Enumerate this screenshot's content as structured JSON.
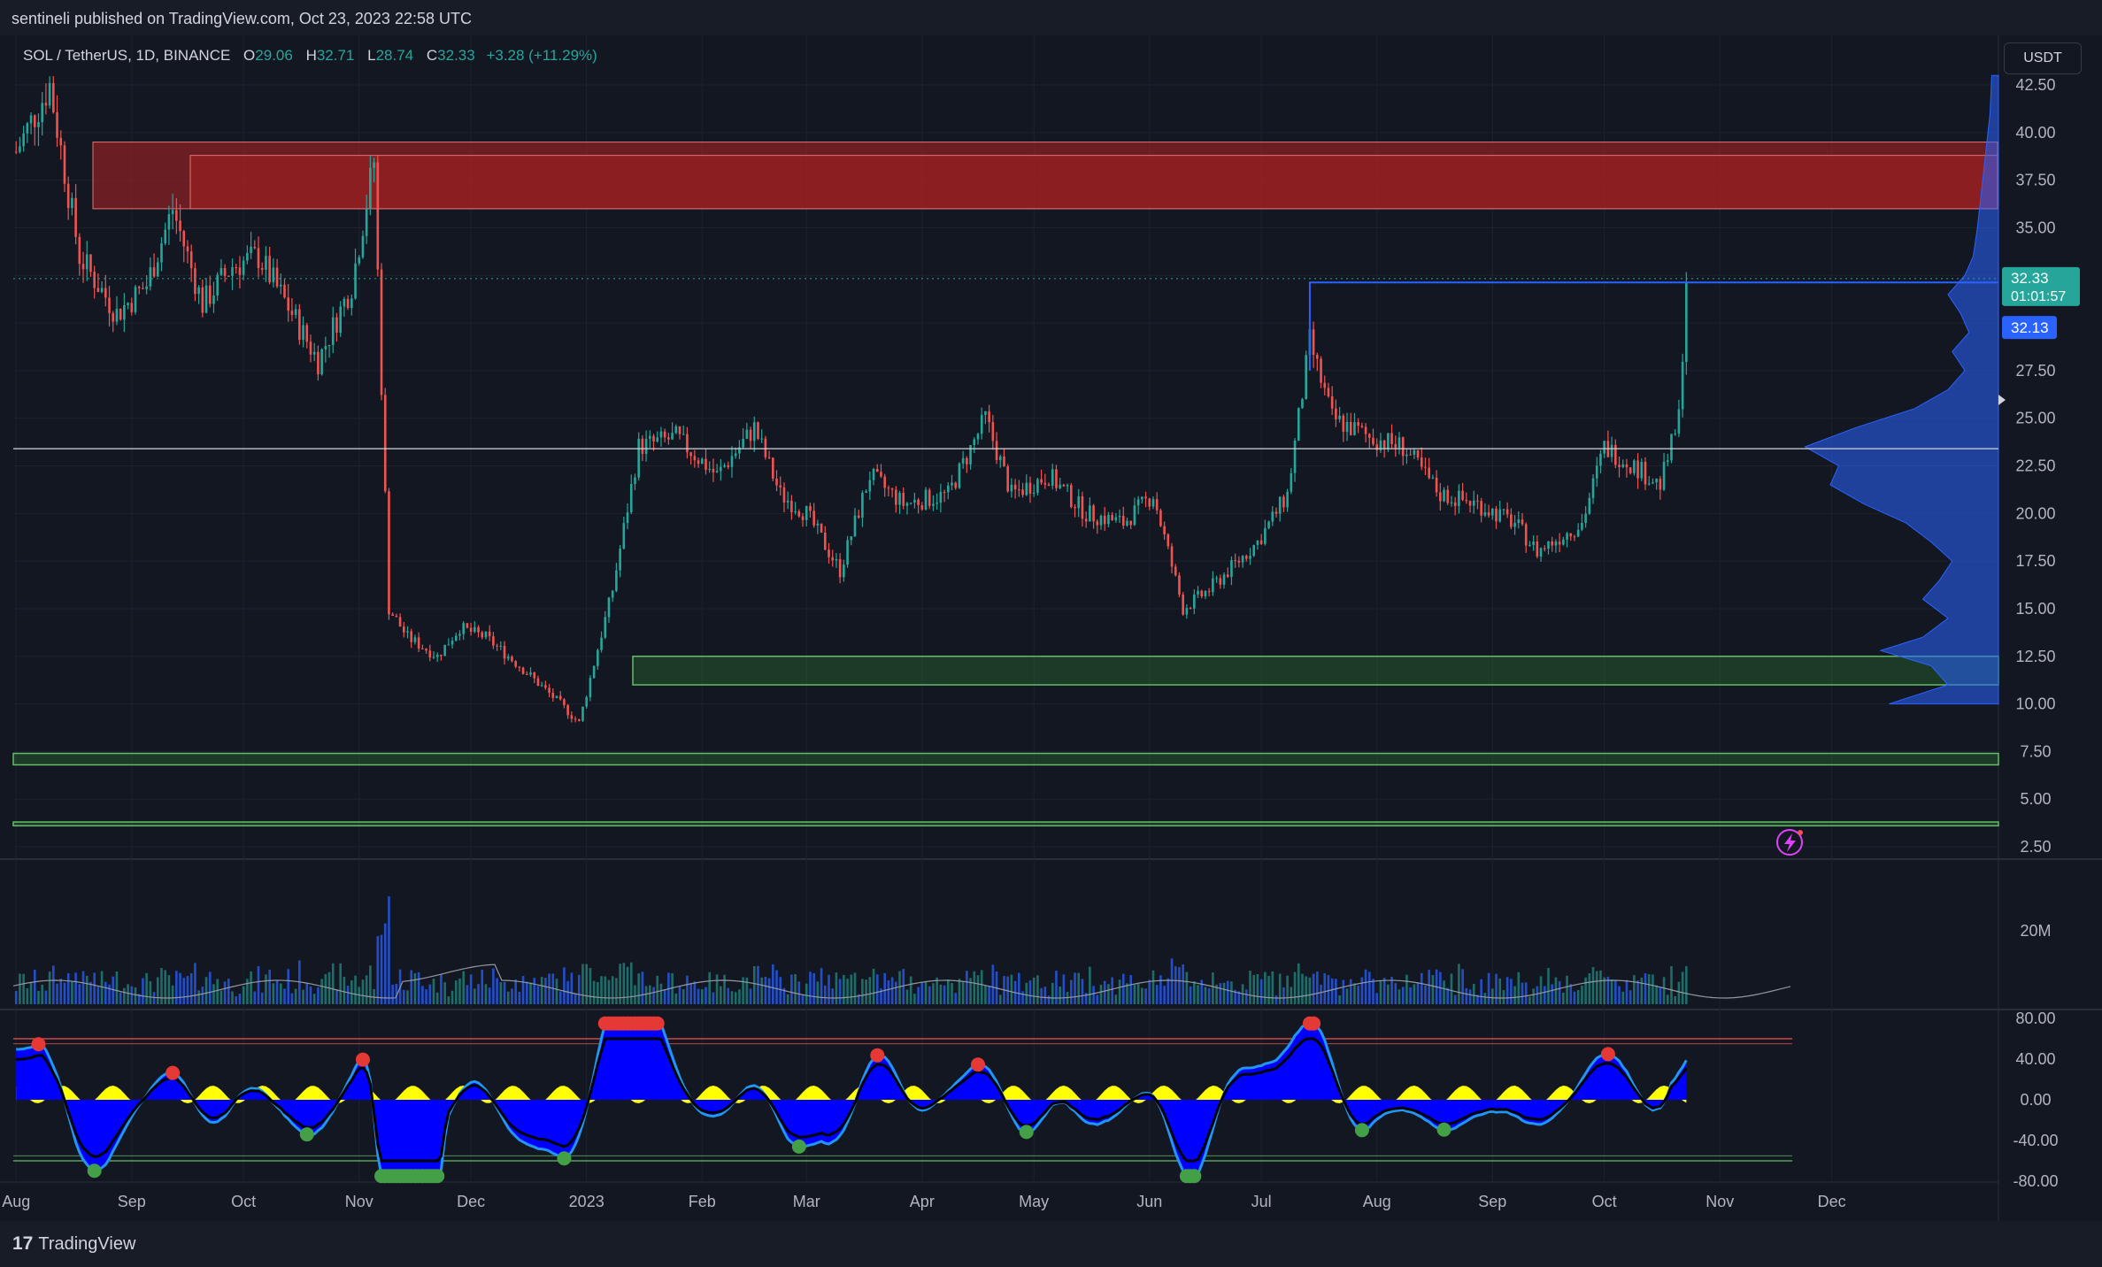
{
  "header": {
    "published": "sentineli published on TradingView.com, Oct 23, 2023 22:58 UTC"
  },
  "legend": {
    "symbol": "SOL / TetherUS, 1D, BINANCE",
    "open_label": "O",
    "open": "29.06",
    "high_label": "H",
    "high": "32.71",
    "low_label": "L",
    "low": "28.74",
    "close_label": "C",
    "close": "32.33",
    "change": "+3.28 (+11.29%)"
  },
  "currency": "USDT",
  "price_tags": {
    "last": "32.33",
    "countdown": "01:01:57",
    "line": "32.13"
  },
  "volume_label": "20M",
  "footer": {
    "brand": "TradingView"
  },
  "colors": {
    "up": "#26a69a",
    "down": "#ef5350",
    "bg": "#131722",
    "resistance": "#8b1a1a",
    "support": "#2e7d32",
    "oscillator": "#0000ff",
    "oscillator_fill": "#ffff00",
    "profile": "#2962ff"
  },
  "chart_data": {
    "type": "candlestick",
    "title": "SOL / TetherUS, 1D, BINANCE",
    "x_ticks": [
      "Aug",
      "Sep",
      "Oct",
      "Nov",
      "Dec",
      "2023",
      "Feb",
      "Mar",
      "Apr",
      "May",
      "Jun",
      "Jul",
      "Aug",
      "Sep",
      "Oct",
      "Nov",
      "Dec"
    ],
    "y_ticks": [
      "42.50",
      "40.00",
      "37.50",
      "35.00",
      "32.50",
      "30.00",
      "27.50",
      "25.00",
      "22.50",
      "20.00",
      "17.50",
      "15.00",
      "12.50",
      "10.00",
      "7.50",
      "5.00",
      "2.50"
    ],
    "ylim": [
      2.5,
      42.5
    ],
    "close_path": [
      [
        "2022-08-01",
        39.0
      ],
      [
        "2022-08-10",
        42.5
      ],
      [
        "2022-08-18",
        33.5
      ],
      [
        "2022-08-28",
        30.5
      ],
      [
        "2022-09-05",
        32.0
      ],
      [
        "2022-09-12",
        36.0
      ],
      [
        "2022-09-20",
        31.0
      ],
      [
        "2022-09-28",
        33.0
      ],
      [
        "2022-10-05",
        33.5
      ],
      [
        "2022-10-14",
        30.5
      ],
      [
        "2022-10-21",
        28.0
      ],
      [
        "2022-10-30",
        32.0
      ],
      [
        "2022-11-05",
        38.5
      ],
      [
        "2022-11-09",
        15.0
      ],
      [
        "2022-11-14",
        13.5
      ],
      [
        "2022-11-22",
        12.5
      ],
      [
        "2022-11-28",
        14.0
      ],
      [
        "2022-12-05",
        13.5
      ],
      [
        "2022-12-14",
        12.0
      ],
      [
        "2022-12-25",
        10.0
      ],
      [
        "2022-12-30",
        9.0
      ],
      [
        "2023-01-08",
        16.0
      ],
      [
        "2023-01-15",
        23.5
      ],
      [
        "2023-01-25",
        24.0
      ],
      [
        "2023-02-05",
        22.0
      ],
      [
        "2023-02-15",
        24.5
      ],
      [
        "2023-02-22",
        21.0
      ],
      [
        "2023-03-01",
        20.0
      ],
      [
        "2023-03-10",
        17.0
      ],
      [
        "2023-03-18",
        22.0
      ],
      [
        "2023-03-27",
        20.5
      ],
      [
        "2023-04-08",
        21.0
      ],
      [
        "2023-04-18",
        25.0
      ],
      [
        "2023-04-25",
        21.0
      ],
      [
        "2023-05-05",
        22.0
      ],
      [
        "2023-05-15",
        20.0
      ],
      [
        "2023-05-25",
        19.5
      ],
      [
        "2023-06-02",
        21.0
      ],
      [
        "2023-06-10",
        15.0
      ],
      [
        "2023-06-17",
        16.0
      ],
      [
        "2023-06-30",
        18.5
      ],
      [
        "2023-07-08",
        21.0
      ],
      [
        "2023-07-14",
        29.0
      ],
      [
        "2023-07-20",
        25.0
      ],
      [
        "2023-07-30",
        24.0
      ],
      [
        "2023-08-08",
        23.5
      ],
      [
        "2023-08-18",
        21.0
      ],
      [
        "2023-08-28",
        20.5
      ],
      [
        "2023-09-07",
        19.5
      ],
      [
        "2023-09-13",
        18.0
      ],
      [
        "2023-09-25",
        19.5
      ],
      [
        "2023-10-01",
        23.5
      ],
      [
        "2023-10-09",
        22.5
      ],
      [
        "2023-10-16",
        21.5
      ],
      [
        "2023-10-21",
        25.0
      ],
      [
        "2023-10-23",
        32.33
      ]
    ],
    "zones": [
      {
        "type": "resistance",
        "from": 36.0,
        "to": 39.5
      },
      {
        "type": "support",
        "from": 11.0,
        "to": 12.5
      },
      {
        "type": "support",
        "from": 6.8,
        "to": 7.4
      },
      {
        "type": "support",
        "from": 3.6,
        "to": 3.8
      }
    ],
    "levels": [
      {
        "name": "white-level",
        "value": 23.4
      },
      {
        "name": "blue-level",
        "value": 32.13
      }
    ],
    "volume": {
      "max_label": "20M",
      "ref": 20000000
    },
    "oscillator": {
      "ylim": [
        -80,
        80
      ],
      "y_ticks": [
        "80.00",
        "40.00",
        "0.00",
        "-40.00",
        "-80.00"
      ],
      "upper": 60,
      "lower": -60
    }
  }
}
